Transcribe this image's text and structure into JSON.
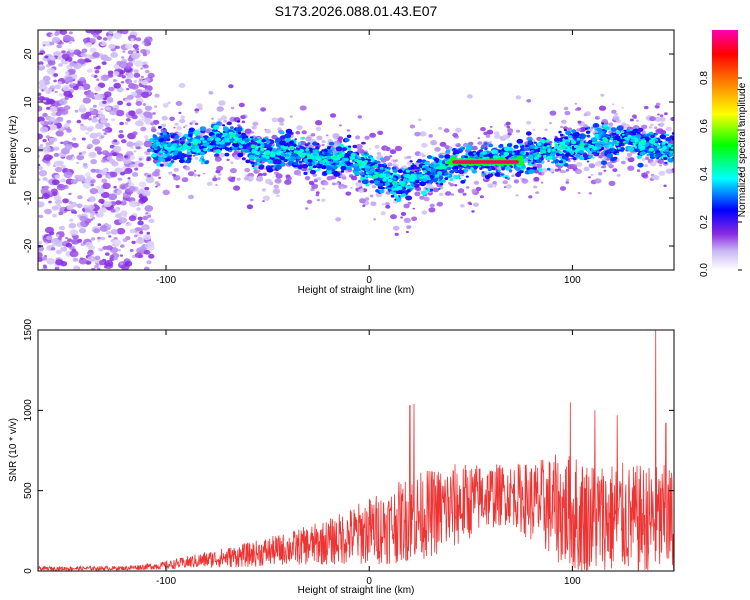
{
  "title": "S173.2026.088.01.43.E07",
  "chart_data": [
    {
      "type": "heatmap",
      "xlabel": "Height of straight line (km)",
      "ylabel": "Frequency (Hz)",
      "xlim": [
        -163,
        150
      ],
      "ylim": [
        -25,
        25
      ],
      "xticks": [
        -100,
        0,
        100
      ],
      "yticks": [
        -20,
        -10,
        0,
        10,
        20
      ],
      "colorbar": {
        "label": "Normalized spectral amplitude",
        "range": [
          0,
          1
        ],
        "ticks": [
          0.0,
          0.2,
          0.4,
          0.6,
          0.8
        ]
      },
      "ridge_frequency": {
        "x": [
          -107,
          -95,
          -85,
          -75,
          -67,
          -60,
          -50,
          -40,
          -30,
          -20,
          -10,
          0,
          10,
          15,
          20,
          30,
          40,
          50,
          60,
          70,
          80,
          90,
          100,
          110,
          120,
          130,
          140,
          150
        ],
        "y": [
          1,
          0,
          1,
          2,
          3,
          0,
          -1,
          0,
          -1,
          -2,
          -1,
          -4,
          -6,
          -8,
          -6,
          -5,
          -3,
          -2,
          -2,
          -2,
          -1,
          0,
          1,
          1,
          2,
          2,
          1,
          0
        ]
      },
      "peak_band": {
        "x": [
          40,
          75
        ],
        "frequency": -2.5,
        "amplitude": 0.95
      }
    },
    {
      "type": "line",
      "xlabel": "Height of straight line (km)",
      "ylabel": "SNR (10 * v/v)",
      "xlim": [
        -163,
        150
      ],
      "ylim": [
        0,
        1500
      ],
      "xticks": [
        -100,
        0,
        100
      ],
      "yticks": [
        0,
        500,
        1000,
        1500
      ],
      "color": "#ee3333",
      "envelope": {
        "x": [
          -163,
          -120,
          -100,
          -80,
          -60,
          -40,
          -20,
          0,
          10,
          20,
          40,
          55,
          70,
          80,
          90,
          100,
          110,
          120,
          130,
          140,
          150
        ],
        "mean": [
          15,
          18,
          35,
          70,
          100,
          140,
          180,
          250,
          280,
          330,
          390,
          460,
          480,
          430,
          400,
          350,
          330,
          330,
          320,
          310,
          300
        ],
        "spread": [
          15,
          15,
          30,
          60,
          90,
          120,
          170,
          250,
          280,
          320,
          330,
          250,
          220,
          300,
          380,
          450,
          420,
          420,
          400,
          420,
          420
        ]
      },
      "peaks": [
        {
          "x": 20,
          "y": 1030
        },
        {
          "x": 22,
          "y": 1040
        },
        {
          "x": 99,
          "y": 1050
        },
        {
          "x": 111,
          "y": 1000
        },
        {
          "x": 122,
          "y": 970
        },
        {
          "x": 141,
          "y": 1500
        },
        {
          "x": 146,
          "y": 920
        }
      ]
    }
  ]
}
